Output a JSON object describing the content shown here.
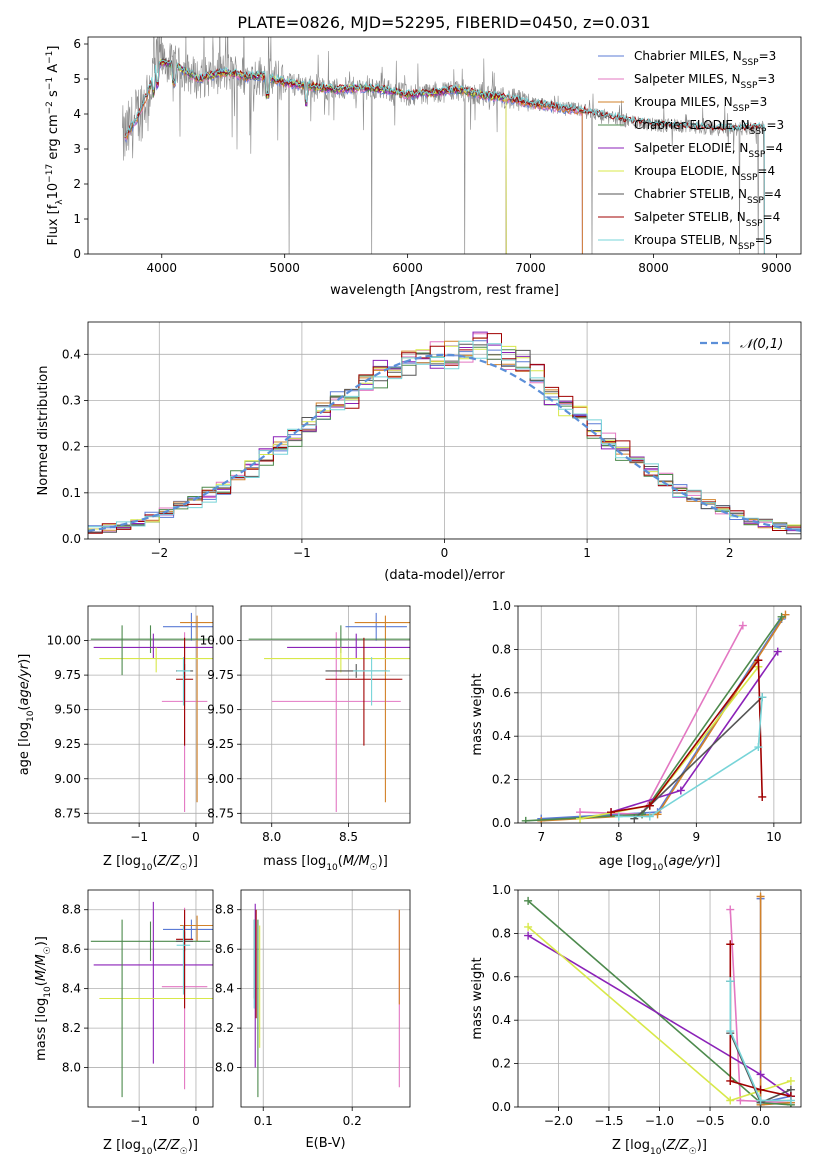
{
  "figure_title": "PLATE=0826, MJD=52295, FIBERID=0450, z=0.031",
  "colors": {
    "Chabrier MILES": "#5b7bd5",
    "Salpeter MILES": "#e377c2",
    "Kroupa MILES": "#d2822a",
    "Chabrier ELODIE": "#4d8a4d",
    "Salpeter ELODIE": "#8b22b8",
    "Kroupa ELODIE": "#d8e84a",
    "Chabrier STELIB": "#555555",
    "Salpeter STELIB": "#a00000",
    "Kroupa STELIB": "#77d4d8",
    "data": "#8a8a8a",
    "normal": "#5b8fd8"
  },
  "chart_data": [
    {
      "id": "spectrum",
      "type": "line",
      "xlabel": "wavelength [Angstrom, rest frame]",
      "ylabel": "Flux [f_λ 10^-17 erg cm^-2 s^-1 A^-1]",
      "xlim": [
        3400,
        9200
      ],
      "ylim": [
        0,
        6.2
      ],
      "xticks": [
        4000,
        5000,
        6000,
        7000,
        8000,
        9000
      ],
      "yticks": [
        0,
        1,
        2,
        3,
        4,
        5,
        6
      ],
      "grid": false,
      "legend_position": "top-right",
      "legend": [
        {
          "name": "Chabrier MILES",
          "nssp": "3"
        },
        {
          "name": "Salpeter MILES",
          "nssp": "3"
        },
        {
          "name": "Kroupa MILES",
          "nssp": "3"
        },
        {
          "name": "Chabrier ELODIE",
          "nssp": "3"
        },
        {
          "name": "Salpeter ELODIE",
          "nssp": "4"
        },
        {
          "name": "Kroupa ELODIE",
          "nssp": "4"
        },
        {
          "name": "Chabrier STELIB",
          "nssp": "4"
        },
        {
          "name": "Salpeter STELIB",
          "nssp": "4"
        },
        {
          "name": "Kroupa STELIB",
          "nssp": "5"
        }
      ],
      "continuum_x": [
        3700,
        3750,
        3800,
        3850,
        3900,
        3950,
        4000,
        4100,
        4200,
        4300,
        4400,
        4500,
        4600,
        4700,
        4800,
        4900,
        5000,
        5200,
        5400,
        5600,
        5800,
        6000,
        6200,
        6400,
        6600,
        6800,
        7000,
        7200,
        7400,
        7600,
        7800,
        8000,
        8200,
        8400,
        8600,
        8800,
        8900
      ],
      "continuum_y": [
        3.3,
        3.6,
        3.9,
        4.3,
        4.7,
        5.3,
        5.5,
        5.4,
        5.2,
        5.0,
        5.1,
        5.2,
        5.15,
        5.05,
        5.1,
        5.0,
        4.9,
        4.8,
        4.7,
        4.75,
        4.7,
        4.55,
        4.6,
        4.7,
        4.55,
        4.45,
        4.3,
        4.2,
        4.1,
        3.95,
        3.8,
        3.7,
        3.65,
        3.6,
        3.55,
        3.6,
        3.6
      ]
    },
    {
      "id": "residuals",
      "type": "histogram",
      "xlabel": "(data-model)/error",
      "ylabel": "Normed distribution",
      "xlim": [
        -2.5,
        2.5
      ],
      "ylim": [
        0,
        0.47
      ],
      "xticks": [
        -2,
        -1,
        0,
        1,
        2
      ],
      "yticks": [
        0.0,
        0.1,
        0.2,
        0.3,
        0.4
      ],
      "grid": true,
      "legend_position": "top-right",
      "reference_label": "𝒩(0,1)",
      "bin_width": 0.1
    },
    {
      "id": "age-vs-Z",
      "type": "scatter",
      "xlabel": "Z [log10(Z/Z☉)]",
      "ylabel": "age  [log10(age/yr)]",
      "xlim": [
        -1.9,
        0.3
      ],
      "ylim": [
        8.68,
        10.25
      ],
      "xticks": [
        -1,
        0
      ],
      "yticks": [
        8.75,
        9.0,
        9.25,
        9.5,
        9.75,
        10.0
      ],
      "grid": true,
      "points": [
        {
          "model": "Chabrier MILES",
          "x": -0.08,
          "y": 10.1,
          "xerr": 0.5,
          "yerr": [
            0.1,
            0.1
          ]
        },
        {
          "model": "Salpeter MILES",
          "x": -0.2,
          "y": 9.56,
          "xerr": 0.4,
          "yerr": [
            0.8,
            0.5
          ]
        },
        {
          "model": "Kroupa MILES",
          "x": 0.02,
          "y": 10.13,
          "xerr": 0.3,
          "yerr": [
            1.3,
            0.05
          ]
        },
        {
          "model": "Chabrier ELODIE",
          "x": -0.8,
          "y": 10.01,
          "xerr": 1.05,
          "yerr": [
            0.1,
            0.1
          ]
        },
        {
          "model": "Salpeter ELODIE",
          "x": -0.75,
          "y": 9.95,
          "xerr": 1.05,
          "yerr": [
            0.08,
            0.1
          ]
        },
        {
          "model": "Kroupa ELODIE",
          "x": -0.7,
          "y": 9.87,
          "xerr": 1.0,
          "yerr": [
            0.1,
            0.08
          ]
        },
        {
          "model": "Chabrier STELIB",
          "x": -0.2,
          "y": 9.78,
          "xerr": 0.15,
          "yerr": [
            0.05,
            0.05
          ]
        },
        {
          "model": "Salpeter STELIB",
          "x": -0.2,
          "y": 9.72,
          "xerr": 0.15,
          "yerr": [
            0.48,
            0.3
          ]
        },
        {
          "model": "Kroupa STELIB",
          "x": -0.22,
          "y": 9.78,
          "xerr": 0.12,
          "yerr": [
            0.25,
            0.1
          ]
        },
        {
          "model": "Chabrier ELODIE",
          "x": -1.3,
          "y": 9.93,
          "xerr": 0.0,
          "yerr": [
            0.18,
            0.18
          ]
        }
      ]
    },
    {
      "id": "age-vs-mass",
      "type": "scatter",
      "xlabel": "mass [log10(M/M☉)]",
      "ylabel": "",
      "xlim": [
        7.8,
        8.9
      ],
      "ylim": [
        8.68,
        10.25
      ],
      "xticks": [
        8.0,
        8.5
      ],
      "yticks": [
        8.75,
        9.0,
        9.25,
        9.5,
        9.75,
        10.0
      ],
      "grid": true,
      "points": [
        {
          "model": "Chabrier MILES",
          "x": 8.68,
          "y": 10.1,
          "xerr": 0.2,
          "yerr": [
            0.1,
            0.1
          ]
        },
        {
          "model": "Salpeter MILES",
          "x": 8.42,
          "y": 9.56,
          "xerr": 0.42,
          "yerr": [
            0.8,
            0.5
          ]
        },
        {
          "model": "Kroupa MILES",
          "x": 8.74,
          "y": 10.13,
          "xerr": 0.2,
          "yerr": [
            1.3,
            0.05
          ]
        },
        {
          "model": "Chabrier ELODIE",
          "x": 8.45,
          "y": 10.01,
          "xerr": 0.6,
          "yerr": [
            0.1,
            0.1
          ]
        },
        {
          "model": "Salpeter ELODIE",
          "x": 8.55,
          "y": 9.95,
          "xerr": 0.45,
          "yerr": [
            0.08,
            0.1
          ]
        },
        {
          "model": "Kroupa ELODIE",
          "x": 8.45,
          "y": 9.87,
          "xerr": 0.5,
          "yerr": [
            0.1,
            0.08
          ]
        },
        {
          "model": "Chabrier STELIB",
          "x": 8.55,
          "y": 9.78,
          "xerr": 0.2,
          "yerr": [
            0.05,
            0.05
          ]
        },
        {
          "model": "Salpeter STELIB",
          "x": 8.6,
          "y": 9.72,
          "xerr": 0.25,
          "yerr": [
            0.48,
            0.3
          ]
        },
        {
          "model": "Kroupa STELIB",
          "x": 8.65,
          "y": 9.78,
          "xerr": 0.12,
          "yerr": [
            0.25,
            0.1
          ]
        }
      ]
    },
    {
      "id": "mass-weight-vs-age",
      "type": "line",
      "xlabel": "age  [log10(age/yr)]",
      "ylabel": "mass weight",
      "xlim": [
        6.7,
        10.35
      ],
      "ylim": [
        0,
        1.0
      ],
      "xticks": [
        7,
        8,
        9,
        10
      ],
      "yticks": [
        0.0,
        0.2,
        0.4,
        0.6,
        0.8,
        1.0
      ],
      "grid": true,
      "series": [
        {
          "name": "Chabrier MILES",
          "x": [
            7.0,
            8.5,
            10.1
          ],
          "y": [
            0.02,
            0.05,
            0.94
          ]
        },
        {
          "name": "Salpeter MILES",
          "x": [
            7.5,
            8.3,
            9.6
          ],
          "y": [
            0.05,
            0.04,
            0.91
          ]
        },
        {
          "name": "Kroupa MILES",
          "x": [
            7.0,
            8.5,
            10.15
          ],
          "y": [
            0.01,
            0.04,
            0.96
          ]
        },
        {
          "name": "Chabrier ELODIE",
          "x": [
            6.8,
            8.3,
            10.1
          ],
          "y": [
            0.01,
            0.04,
            0.95
          ]
        },
        {
          "name": "Salpeter ELODIE",
          "x": [
            7.9,
            8.8,
            10.05
          ],
          "y": [
            0.05,
            0.15,
            0.79
          ]
        },
        {
          "name": "Kroupa ELODIE",
          "x": [
            7.5,
            8.4,
            9.8
          ],
          "y": [
            0.02,
            0.08,
            0.72
          ]
        },
        {
          "name": "Chabrier STELIB",
          "x": [
            8.2,
            8.4,
            9.85
          ],
          "y": [
            0.02,
            0.08,
            0.58
          ]
        },
        {
          "name": "Salpeter STELIB",
          "x": [
            7.9,
            8.4,
            9.8,
            9.85
          ],
          "y": [
            0.05,
            0.08,
            0.75,
            0.12
          ]
        },
        {
          "name": "Kroupa STELIB",
          "x": [
            8.0,
            8.4,
            9.8,
            9.85
          ],
          "y": [
            0.03,
            0.03,
            0.35,
            0.58
          ]
        }
      ]
    },
    {
      "id": "mass-vs-Z",
      "type": "scatter",
      "xlabel": "Z [log10(Z/Z☉)]",
      "ylabel": "mass [log10(M/M☉)]",
      "xlim": [
        -1.9,
        0.3
      ],
      "ylim": [
        7.8,
        8.9
      ],
      "xticks": [
        -1,
        0
      ],
      "yticks": [
        8.0,
        8.2,
        8.4,
        8.6,
        8.8
      ],
      "grid": true,
      "points": [
        {
          "model": "Chabrier MILES",
          "x": -0.08,
          "y": 8.7,
          "xerr": 0.5,
          "yerr": [
            0.05,
            0.05
          ]
        },
        {
          "model": "Salpeter MILES",
          "x": -0.2,
          "y": 8.41,
          "xerr": 0.4,
          "yerr": [
            0.52,
            0.4
          ]
        },
        {
          "model": "Kroupa MILES",
          "x": 0.02,
          "y": 8.72,
          "xerr": 0.3,
          "yerr": [
            0.08,
            0.05
          ]
        },
        {
          "model": "Chabrier ELODIE",
          "x": -0.8,
          "y": 8.64,
          "xerr": 1.05,
          "yerr": [
            0.1,
            0.1
          ]
        },
        {
          "model": "Salpeter ELODIE",
          "x": -0.75,
          "y": 8.52,
          "xerr": 1.05,
          "yerr": [
            0.5,
            0.32
          ]
        },
        {
          "model": "Kroupa ELODIE",
          "x": -0.7,
          "y": 8.35,
          "xerr": 1.0,
          "yerr": [
            0.0,
            0.0
          ]
        },
        {
          "model": "Chabrier STELIB",
          "x": -0.2,
          "y": 8.64,
          "xerr": 0.15,
          "yerr": [
            0.05,
            0.05
          ]
        },
        {
          "model": "Salpeter STELIB",
          "x": -0.2,
          "y": 8.65,
          "xerr": 0.15,
          "yerr": [
            0.35,
            0.15
          ]
        },
        {
          "model": "Kroupa STELIB",
          "x": -0.22,
          "y": 8.62,
          "xerr": 0.12,
          "yerr": [
            0.25,
            0.1
          ]
        },
        {
          "model": "Chabrier ELODIE",
          "x": -1.3,
          "y": 8.3,
          "xerr": 0.0,
          "yerr": [
            0.45,
            0.45
          ]
        }
      ]
    },
    {
      "id": "mass-vs-ebv",
      "type": "scatter",
      "xlabel": "E(B-V)",
      "ylabel": "",
      "xlim": [
        0.075,
        0.265
      ],
      "ylim": [
        7.8,
        8.9
      ],
      "xticks": [
        0.1,
        0.2
      ],
      "yticks": [
        8.0,
        8.2,
        8.4,
        8.6,
        8.8
      ],
      "grid": true,
      "points": [
        {
          "model": "Chabrier MILES",
          "x": 0.09,
          "y": 8.6,
          "yerr": [
            0.3,
            0.15
          ]
        },
        {
          "model": "Salpeter MILES",
          "x": 0.253,
          "y": 8.4,
          "yerr": [
            0.5,
            0.4
          ]
        },
        {
          "model": "Kroupa MILES",
          "x": 0.253,
          "y": 8.55,
          "yerr": [
            0.23,
            0.25
          ]
        },
        {
          "model": "Chabrier ELODIE",
          "x": 0.094,
          "y": 8.5,
          "yerr": [
            0.65,
            0.25
          ]
        },
        {
          "model": "Salpeter ELODIE",
          "x": 0.091,
          "y": 8.4,
          "yerr": [
            0.4,
            0.43
          ]
        },
        {
          "model": "Kroupa ELODIE",
          "x": 0.096,
          "y": 8.5,
          "yerr": [
            0.4,
            0.22
          ]
        },
        {
          "model": "Chabrier STELIB",
          "x": 0.09,
          "y": 8.55,
          "yerr": [
            0.2,
            0.2
          ]
        },
        {
          "model": "Salpeter STELIB",
          "x": 0.092,
          "y": 8.55,
          "yerr": [
            0.3,
            0.25
          ]
        },
        {
          "model": "Kroupa STELIB",
          "x": 0.09,
          "y": 8.5,
          "yerr": [
            0.2,
            0.25
          ]
        }
      ]
    },
    {
      "id": "mass-weight-vs-Z",
      "type": "line",
      "xlabel": "Z [log10(Z/Z☉)]",
      "ylabel": "mass weight",
      "xlim": [
        -2.4,
        0.4
      ],
      "ylim": [
        0,
        1.0
      ],
      "xticks": [
        -2.0,
        -1.5,
        -1.0,
        -0.5,
        0.0
      ],
      "yticks": [
        0.0,
        0.2,
        0.4,
        0.6,
        0.8,
        1.0
      ],
      "grid": true,
      "series": [
        {
          "name": "Chabrier MILES",
          "x": [
            0.0,
            0.0,
            0.3
          ],
          "y": [
            0.96,
            0.02,
            0.05
          ]
        },
        {
          "name": "Salpeter MILES",
          "x": [
            -0.3,
            -0.2,
            0.3
          ],
          "y": [
            0.91,
            0.03,
            0.02
          ]
        },
        {
          "name": "Kroupa MILES",
          "x": [
            0.0,
            0.0,
            0.3
          ],
          "y": [
            0.97,
            0.01,
            0.02
          ]
        },
        {
          "name": "Chabrier ELODIE",
          "x": [
            -2.3,
            0.0,
            0.3
          ],
          "y": [
            0.95,
            0.02,
            0.01
          ]
        },
        {
          "name": "Salpeter ELODIE",
          "x": [
            -2.3,
            0.0,
            0.3
          ],
          "y": [
            0.79,
            0.15,
            0.05
          ]
        },
        {
          "name": "Kroupa ELODIE",
          "x": [
            -2.3,
            -0.3,
            0.3
          ],
          "y": [
            0.83,
            0.03,
            0.12
          ]
        },
        {
          "name": "Chabrier STELIB",
          "x": [
            -0.3,
            -0.3,
            0.0,
            0.3
          ],
          "y": [
            0.58,
            0.34,
            0.02,
            0.08
          ]
        },
        {
          "name": "Salpeter STELIB",
          "x": [
            -0.3,
            -0.3,
            0.0,
            0.3
          ],
          "y": [
            0.75,
            0.12,
            0.08,
            0.05
          ]
        },
        {
          "name": "Kroupa STELIB",
          "x": [
            -0.3,
            -0.3,
            0.0,
            0.3
          ],
          "y": [
            0.58,
            0.35,
            0.03,
            0.03
          ]
        }
      ]
    }
  ]
}
